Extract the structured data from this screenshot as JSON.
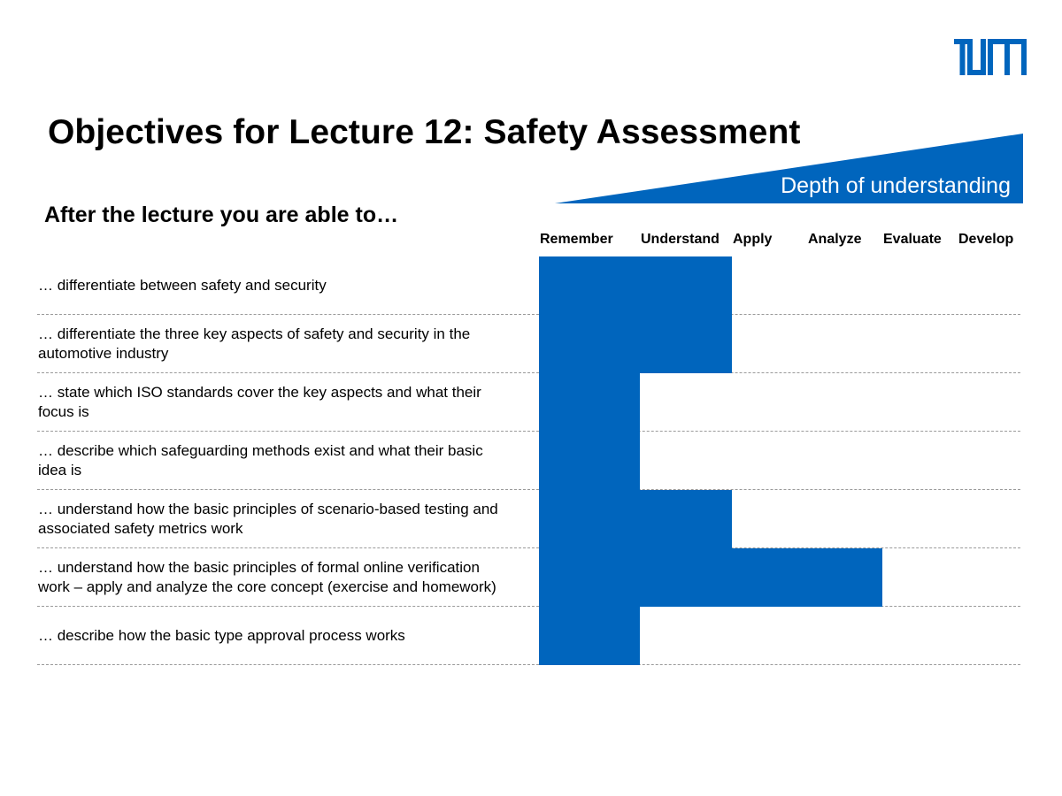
{
  "header": {
    "logo_name": "tum-logo",
    "title": "Objectives for Lecture 12: Safety Assessment",
    "depth_label": "Depth of understanding",
    "subtitle": "After the lecture you are able to…"
  },
  "colors": {
    "accent": "#0065bd",
    "divider": "#9a9a9a"
  },
  "levels": [
    "Remember",
    "Understand",
    "Apply",
    "Analyze",
    "Evaluate",
    "Develop"
  ],
  "objectives": [
    {
      "text": "… differentiate between safety and security",
      "depth": "Understand"
    },
    {
      "text": "… differentiate the three key aspects of safety and security in the automotive industry",
      "depth": "Understand"
    },
    {
      "text": "… state which ISO standards cover the key aspects and what their focus is",
      "depth": "Remember"
    },
    {
      "text": "… describe which safeguarding methods exist and what their basic idea is",
      "depth": "Remember"
    },
    {
      "text": "… understand how the basic principles of scenario-based testing and associated safety metrics work",
      "depth": "Understand"
    },
    {
      "text": "… understand how the basic principles of formal online verification work – apply and analyze the core concept (exercise and homework)",
      "depth": "Analyze"
    },
    {
      "text": "… describe how the basic type approval process works",
      "depth": "Remember"
    }
  ]
}
